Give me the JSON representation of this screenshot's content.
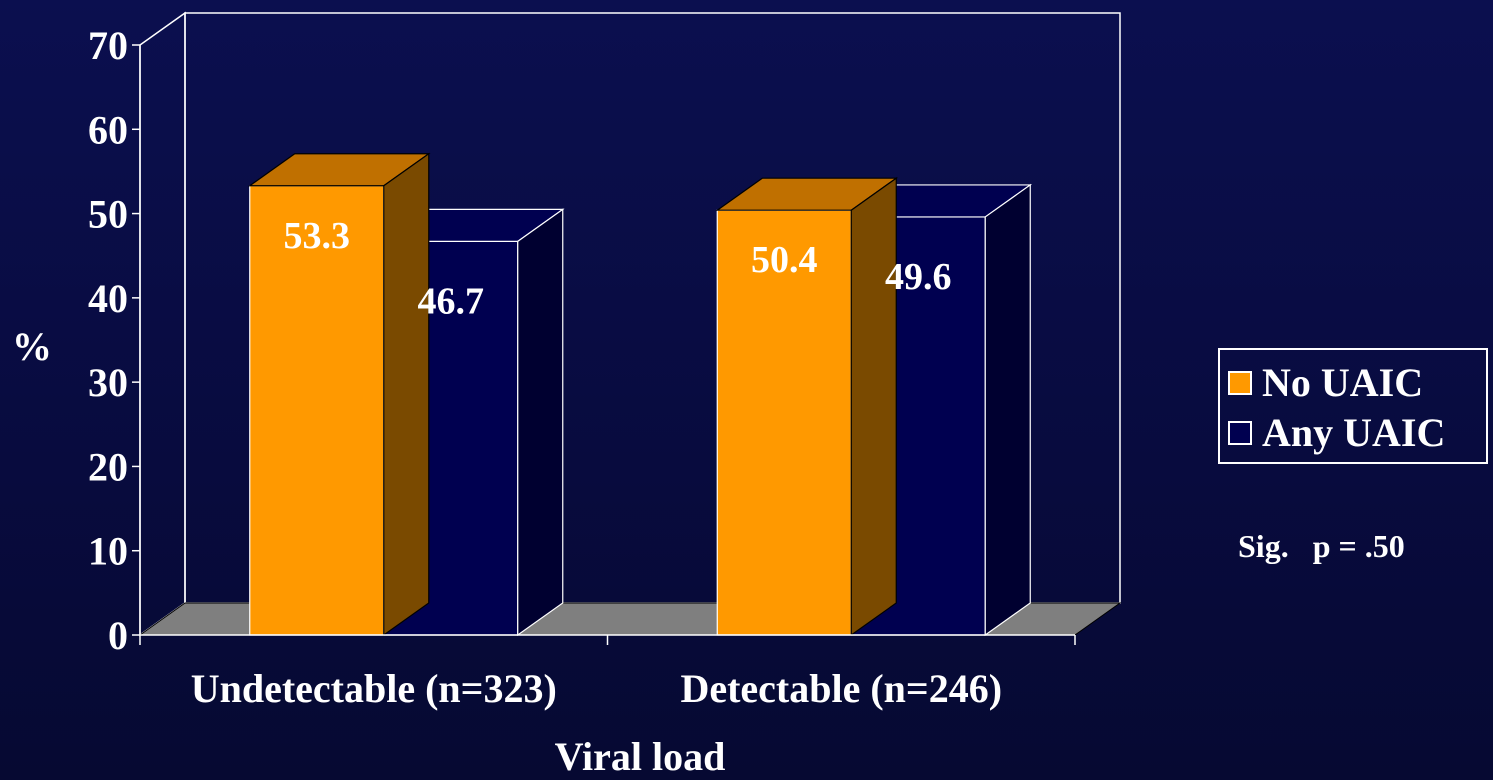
{
  "chart_data": {
    "type": "bar",
    "title": "",
    "xlabel": "Viral load",
    "ylabel": "%",
    "ylim": [
      0,
      70
    ],
    "yticks": [
      0,
      10,
      20,
      30,
      40,
      50,
      60,
      70
    ],
    "categories": [
      "Undetectable (n=323)",
      "Detectable (n=246)"
    ],
    "series": [
      {
        "name": "No UAIC",
        "values": [
          53.3,
          50.4
        ],
        "labels": [
          "53.3",
          "50.4"
        ],
        "color": "#ff9900",
        "top_color": "#c07000",
        "side_color": "#7a4a00"
      },
      {
        "name": "Any UAIC",
        "values": [
          46.7,
          49.6
        ],
        "labels": [
          "46.7",
          "49.6"
        ],
        "color": "#000050",
        "top_color": "#000050",
        "side_color": "#000030"
      }
    ],
    "grid": false,
    "three_d": true,
    "legend_position": "right",
    "colors": {
      "background": "#0b0f4f",
      "floor": "#7f7f7f",
      "frame": "#ffffff"
    }
  },
  "annotation": {
    "text": "Sig.   p = .50"
  }
}
